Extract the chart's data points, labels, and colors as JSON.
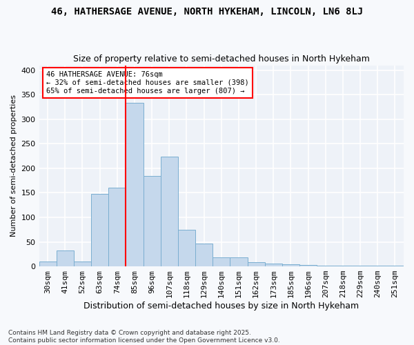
{
  "title": "46, HATHERSAGE AVENUE, NORTH HYKEHAM, LINCOLN, LN6 8LJ",
  "subtitle": "Size of property relative to semi-detached houses in North Hykeham",
  "xlabel": "Distribution of semi-detached houses by size in North Hykeham",
  "ylabel": "Number of semi-detached properties",
  "categories": [
    "30sqm",
    "41sqm",
    "52sqm",
    "63sqm",
    "74sqm",
    "85sqm",
    "96sqm",
    "107sqm",
    "118sqm",
    "129sqm",
    "140sqm",
    "151sqm",
    "162sqm",
    "173sqm",
    "185sqm",
    "196sqm",
    "207sqm",
    "218sqm",
    "229sqm",
    "240sqm",
    "251sqm"
  ],
  "values": [
    10,
    32,
    10,
    148,
    160,
    333,
    184,
    224,
    75,
    46,
    19,
    19,
    8,
    6,
    5,
    3,
    1,
    1,
    1,
    1,
    2
  ],
  "bar_color": "#c5d8ec",
  "bar_edge_color": "#7aaed0",
  "highlight_bar_index": 5,
  "vline_color": "red",
  "annotation_text": "46 HATHERSAGE AVENUE: 76sqm\n← 32% of semi-detached houses are smaller (398)\n65% of semi-detached houses are larger (807) →",
  "annotation_box_color": "white",
  "annotation_box_edge_color": "red",
  "ylim": [
    0,
    410
  ],
  "yticks": [
    0,
    50,
    100,
    150,
    200,
    250,
    300,
    350,
    400
  ],
  "footer": "Contains HM Land Registry data © Crown copyright and database right 2025.\nContains public sector information licensed under the Open Government Licence v3.0.",
  "bg_color": "#f7f9fc",
  "plot_bg_color": "#eef2f8",
  "grid_color": "white",
  "title_fontsize": 10,
  "subtitle_fontsize": 9,
  "xlabel_fontsize": 9,
  "ylabel_fontsize": 8,
  "tick_fontsize": 8,
  "footer_fontsize": 6.5
}
